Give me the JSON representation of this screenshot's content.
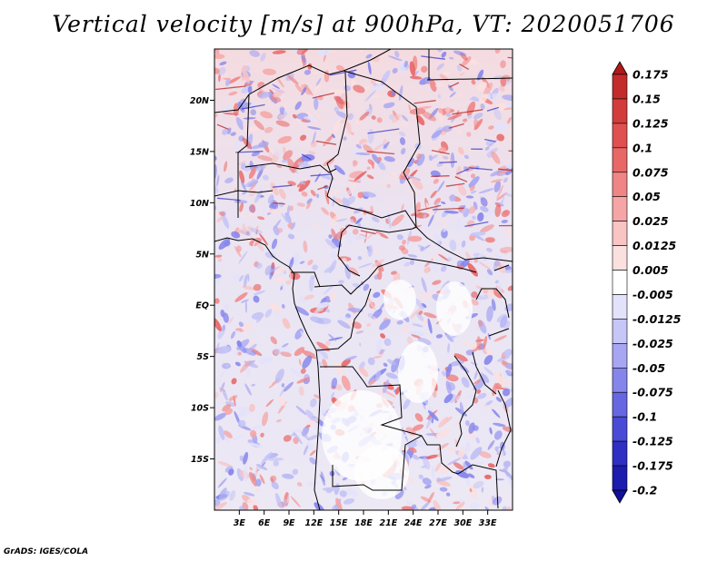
{
  "title": "Vertical velocity [m/s] at 900hPa, VT: 2020051706",
  "footer": "GrADS: IGES/COLA",
  "map": {
    "lon_range": [
      0,
      36
    ],
    "lat_range": [
      -20,
      25
    ],
    "lon_ticks": [
      "3E",
      "6E",
      "9E",
      "12E",
      "15E",
      "18E",
      "21E",
      "24E",
      "27E",
      "30E",
      "33E"
    ],
    "lat_ticks": [
      "20N",
      "15N",
      "10N",
      "5N",
      "EQ",
      "5S",
      "10S",
      "15S"
    ]
  },
  "colorbar": {
    "levels": [
      "0.175",
      "0.15",
      "0.125",
      "0.1",
      "0.075",
      "0.05",
      "0.025",
      "0.0125",
      "0.005",
      "-0.005",
      "-0.0125",
      "-0.025",
      "-0.05",
      "-0.075",
      "-0.1",
      "-0.125",
      "-0.175",
      "-0.2"
    ],
    "colors": [
      "#b01a1a",
      "#c42b2b",
      "#d23c3c",
      "#e05050",
      "#e86767",
      "#ef8585",
      "#f5a5a5",
      "#f8c4c4",
      "#fbe0e0",
      "#ffffff",
      "#e2e2fb",
      "#c6c6f7",
      "#a6a6f2",
      "#8585ec",
      "#6767e2",
      "#4a4ad6",
      "#2f2fc4",
      "#1c1cae",
      "#10109a"
    ]
  }
}
